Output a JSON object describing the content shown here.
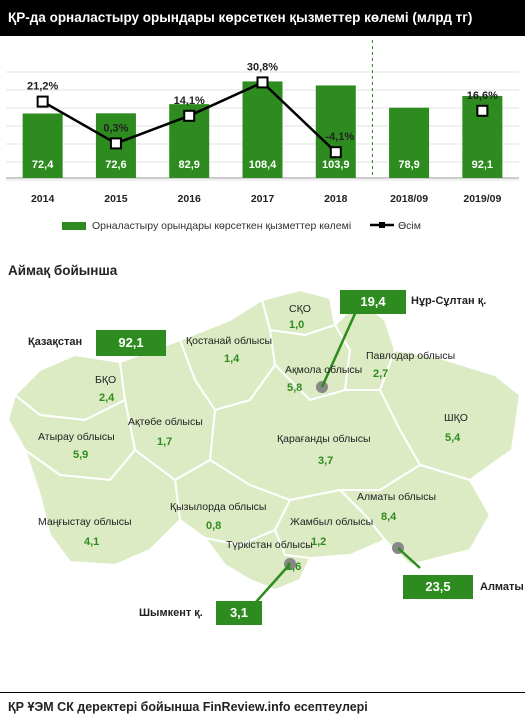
{
  "header": {
    "title": "ҚР-да орналастыру орындары көрсеткен қызметтер көлемі (млрд тг)"
  },
  "chart_data": {
    "type": "bar",
    "categories": [
      "2014",
      "2015",
      "2016",
      "2017",
      "2018",
      "2018/09",
      "2019/09"
    ],
    "series": [
      {
        "name": "Орналастыру орындары көрсеткен қызметтер көлемі",
        "type": "bar",
        "values": [
          72.4,
          72.6,
          82.9,
          108.4,
          103.9,
          78.9,
          92.1
        ]
      },
      {
        "name": "Өсім",
        "type": "line",
        "values": [
          21.2,
          0.3,
          14.1,
          30.8,
          -4.1,
          null,
          16.6
        ]
      }
    ],
    "bar_labels": [
      "72,4",
      "72,6",
      "82,9",
      "108,4",
      "103,9",
      "78,9",
      "92,1"
    ],
    "growth_labels": [
      "21,2%",
      "0,3%",
      "14,1%",
      "30,8%",
      "-4,1%",
      "16,6%"
    ],
    "bar_color": "#2e8b1f",
    "line_color": "#000000",
    "grid": true,
    "legend_position": "bottom"
  },
  "legend": {
    "bar_label": "Орналастыру орындары көрсеткен қызметтер көлемі",
    "line_label": "Өсім"
  },
  "section": {
    "title": "Аймақ бойынша"
  },
  "kazakhstan": {
    "label": "Қазақстан",
    "value": "92,1"
  },
  "regions": [
    {
      "label": "СҚО",
      "value": "1,0"
    },
    {
      "label": "Қостанай облысы",
      "value": "1,4"
    },
    {
      "label": "Ақмола облысы",
      "value": "5,8"
    },
    {
      "label": "Павлодар облысы",
      "value": "2,7"
    },
    {
      "label": "БҚО",
      "value": "2,4"
    },
    {
      "label": "Ақтөбе облысы",
      "value": "1,7"
    },
    {
      "label": "Атырау облысы",
      "value": "5,9"
    },
    {
      "label": "ШҚО",
      "value": "5,4"
    },
    {
      "label": "Қарағанды облысы",
      "value": "3,7"
    },
    {
      "label": "Алматы облысы",
      "value": "8,4"
    },
    {
      "label": "Қызылорда облысы",
      "value": "0,8"
    },
    {
      "label": "Маңғыстау облысы",
      "value": "4,1"
    },
    {
      "label": "Жамбыл облысы",
      "value": "1,2"
    },
    {
      "label": "Түркістан облысы",
      "value": "1,6"
    }
  ],
  "cities": [
    {
      "label": "Нұр-Сұлтан қ.",
      "value": "19,4"
    },
    {
      "label": "Алматы қ.",
      "value": "23,5"
    },
    {
      "label": "Шымкент қ.",
      "value": "3,1"
    }
  ],
  "map_colors": {
    "fill": "#dcebc4",
    "stroke": "#ffffff",
    "city_dot": "#888888",
    "accent": "#2e8b1f"
  },
  "footer": {
    "text": "ҚР ҰЭМ СК деректері бойынша FinReview.info есептеулері"
  }
}
